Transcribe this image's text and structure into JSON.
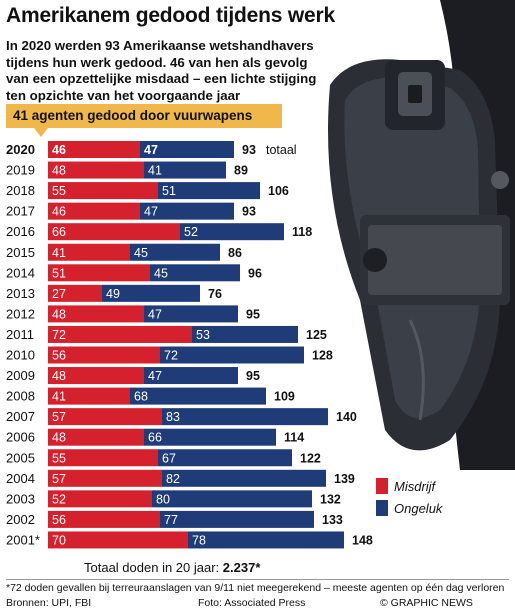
{
  "title": "Amerikanem gedood tijdens werk",
  "intro": "In 2020 werden 93 Amerikaanse  wetshandhavers tijdens hun werk gedood. 46 van hen als gevolg van een opzettelijke misdaad – een lichte stijging ten opzichte van het voorgaande jaar",
  "callout": {
    "number": "41",
    "text": " agenten gedood door vuurwapens"
  },
  "total_suffix": "totaal",
  "legend": {
    "misdrijf": "Misdrijf",
    "ongeluk": "Ongeluk"
  },
  "summary": {
    "label": "Totaal doden in 20 jaar: ",
    "value": "2.237*"
  },
  "footnote": "*72 doden gevallen bij terreuraanslagen van 9/11 niet meegerekend – meeste agenten op één dag verloren",
  "sources": "Bronnen: UPI, FBI",
  "photo_credit": "Foto: Associated Press",
  "credit": "© GRAPHIC NEWS",
  "colors": {
    "misdrijf": "#d4212d",
    "ongeluk": "#1f3c78",
    "callout": "#f0b84b"
  },
  "chart_data": {
    "type": "bar",
    "orientation": "horizontal",
    "stacked": true,
    "categories": [
      "2020",
      "2019",
      "2018",
      "2017",
      "2016",
      "2015",
      "2014",
      "2013",
      "2012",
      "2011",
      "2010",
      "2009",
      "2008",
      "2007",
      "2006",
      "2005",
      "2004",
      "2003",
      "2002",
      "2001*"
    ],
    "series": [
      {
        "name": "Misdrijf",
        "values": [
          46,
          48,
          55,
          46,
          66,
          41,
          51,
          27,
          48,
          72,
          56,
          48,
          41,
          57,
          48,
          55,
          57,
          52,
          56,
          70
        ]
      },
      {
        "name": "Ongeluk",
        "values": [
          47,
          41,
          51,
          47,
          52,
          45,
          45,
          49,
          47,
          53,
          72,
          47,
          68,
          83,
          66,
          67,
          82,
          80,
          77,
          78
        ]
      }
    ],
    "totals": [
      93,
      89,
      106,
      93,
      118,
      86,
      96,
      76,
      95,
      125,
      128,
      95,
      109,
      140,
      114,
      122,
      139,
      132,
      133,
      148
    ],
    "highlight_category": "2020"
  }
}
